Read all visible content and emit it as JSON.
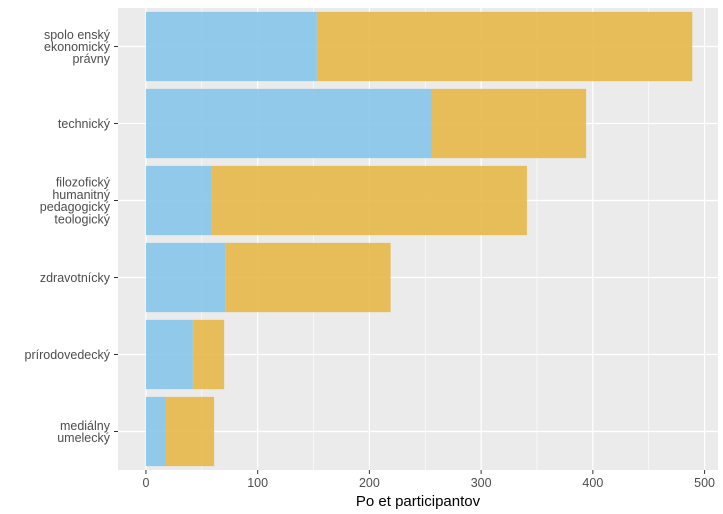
{
  "chart_data": {
    "type": "bar",
    "orientation": "horizontal",
    "stacked": true,
    "title": "",
    "xlabel": "Po et participantov",
    "ylabel": "",
    "xlim": [
      -25,
      512
    ],
    "x_ticks": [
      0,
      100,
      200,
      300,
      400,
      500
    ],
    "categories": [
      [
        "spolo enský",
        "ekonomický",
        "právny"
      ],
      [
        "technický"
      ],
      [
        "filozofický",
        "humanitný",
        "pedagogický",
        "teologický"
      ],
      [
        "zdravotnícky"
      ],
      [
        "prírodovedecký"
      ],
      [
        "mediálny",
        "umelecký"
      ]
    ],
    "series": [
      {
        "color": "#87c5ea",
        "values": [
          153,
          256,
          59,
          71,
          42,
          18
        ]
      },
      {
        "color": "#e7b84a",
        "values": [
          336,
          138,
          282,
          148,
          28,
          43
        ]
      }
    ],
    "grid": true,
    "legend": "none",
    "colors": {
      "panel": "#ebebeb",
      "grid": "#ffffff"
    }
  }
}
